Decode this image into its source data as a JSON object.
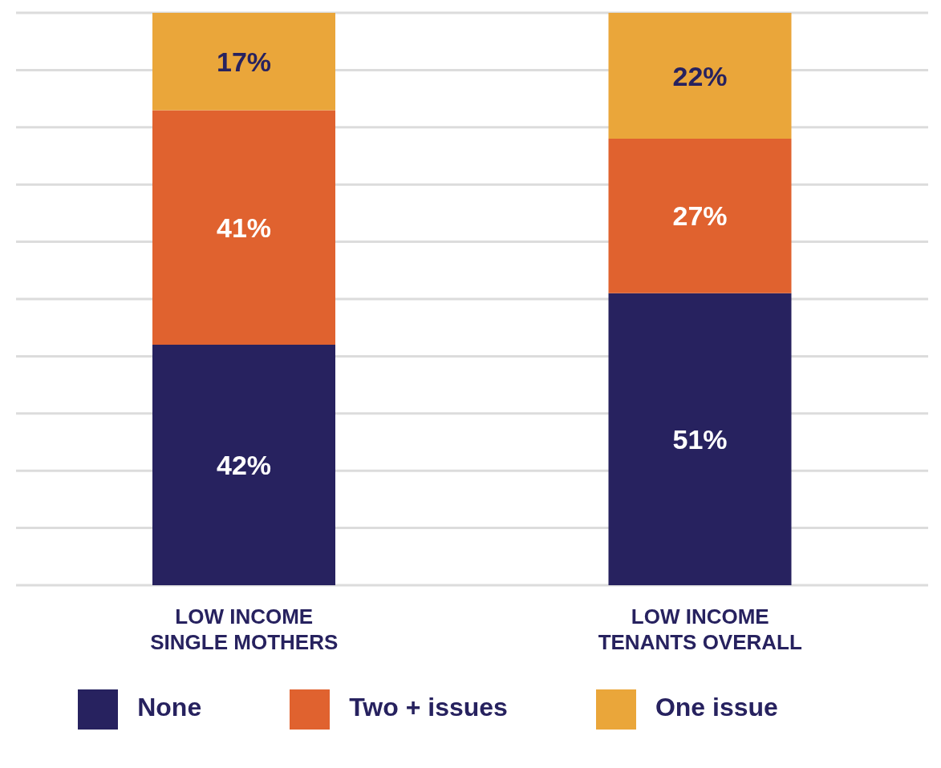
{
  "chart_data": {
    "type": "bar",
    "stacked": true,
    "categories": [
      "LOW INCOME\nSINGLE MOTHERS",
      "LOW INCOME\nTENANTS OVERALL"
    ],
    "series": [
      {
        "name": "None",
        "color": "#27225f",
        "values": [
          42,
          51
        ],
        "value_labels": [
          "42%",
          "51%"
        ]
      },
      {
        "name": "Two + issues",
        "color": "#e0622f",
        "values": [
          41,
          27
        ],
        "value_labels": [
          "41%",
          "27%"
        ]
      },
      {
        "name": "One issue",
        "color": "#eaa63a",
        "values": [
          17,
          22
        ],
        "value_labels": [
          "17%",
          "22%"
        ]
      }
    ],
    "ylim": [
      0,
      100
    ],
    "yticks": [
      {
        "value": 0,
        "label": null
      },
      {
        "value": 10,
        "label": null
      },
      {
        "value": 20,
        "label": null
      },
      {
        "value": 30,
        "label": null
      },
      {
        "value": 40,
        "label": null
      },
      {
        "value": 50,
        "label": null
      },
      {
        "value": 60,
        "label": null
      },
      {
        "value": 70,
        "label": null
      },
      {
        "value": 80,
        "label": null
      },
      {
        "value": 90,
        "label": null
      },
      {
        "value": 100,
        "label": null
      }
    ],
    "grid": "y",
    "tick_labels": "x",
    "legend": "bottom"
  }
}
